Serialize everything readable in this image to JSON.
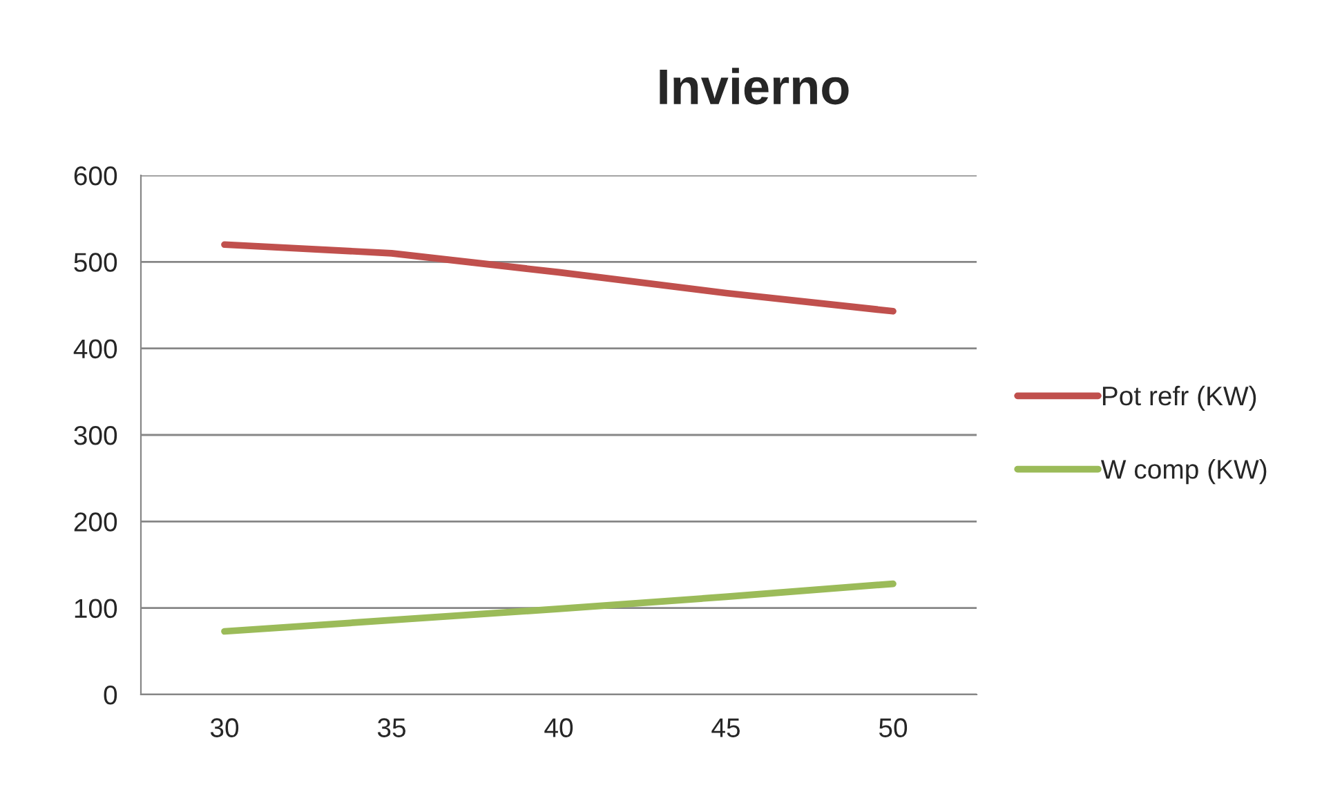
{
  "chart_data": {
    "type": "line",
    "title": "Invierno",
    "categories": [
      "30",
      "35",
      "40",
      "45",
      "50"
    ],
    "series": [
      {
        "name": "Pot refr (KW)",
        "color": "#c0504d",
        "values": [
          520,
          510,
          488,
          464,
          443
        ]
      },
      {
        "name": "W comp (KW)",
        "color": "#9bbb59",
        "values": [
          73,
          86,
          99,
          113,
          128
        ]
      }
    ],
    "ylim": [
      0,
      600
    ],
    "yticks": [
      0,
      100,
      200,
      300,
      400,
      500,
      600
    ],
    "grid": "y",
    "legend": "right",
    "marker": "none",
    "line_style": "solid"
  }
}
